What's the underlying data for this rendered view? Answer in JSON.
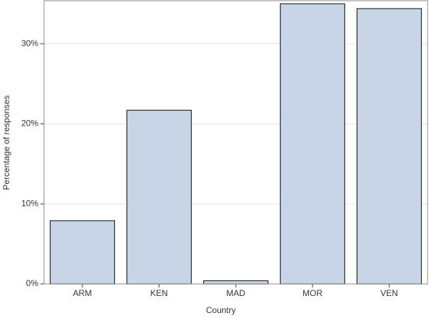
{
  "chart_data": {
    "type": "bar",
    "x_label": "Country",
    "y_label": "Percentage of responses",
    "categories": [
      "ARM",
      "KEN",
      "MAD",
      "MOR",
      "VEN"
    ],
    "values": [
      7.9,
      21.7,
      0.4,
      35.0,
      34.4
    ],
    "color": "#c8d5e6",
    "ylim": [
      0,
      35.3
    ],
    "yticks": [
      {
        "value": 0,
        "label": "0%"
      },
      {
        "value": 10,
        "label": "10%"
      },
      {
        "value": 20,
        "label": "20%"
      },
      {
        "value": 30,
        "label": "30%"
      }
    ],
    "grid": true
  }
}
